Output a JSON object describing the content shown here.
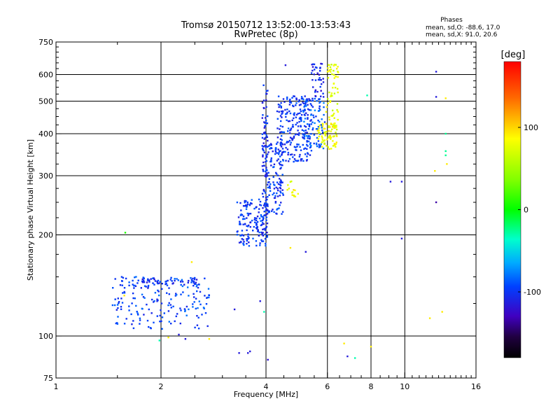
{
  "chart_data": {
    "type": "scatter",
    "title": "Tromsø 20150712 13:52:00-13:53:43",
    "subtitle": "RwPretec (8p)",
    "xlabel": "Frequency [MHz]",
    "ylabel": "Stationary phase Virtual Height [km]",
    "x_scale": "log",
    "y_scale": "log",
    "xlim": [
      1,
      16
    ],
    "ylim": [
      75,
      750
    ],
    "x_ticks": [
      1,
      2,
      4,
      6,
      8,
      10,
      16
    ],
    "x_tick_labels": [
      "1",
      "2",
      "4",
      "6",
      "8",
      "10",
      "16"
    ],
    "x_grid_lines": [
      2,
      4,
      6,
      8,
      10
    ],
    "y_ticks": [
      75,
      100,
      200,
      300,
      400,
      500,
      600,
      750
    ],
    "y_tick_labels": [
      "75",
      "100",
      "200",
      "300",
      "400",
      "500",
      "600",
      "750"
    ],
    "y_grid_lines": [
      100,
      200,
      300,
      400,
      500,
      600
    ],
    "grid": true,
    "phases_legend": {
      "title": "Phases",
      "line_o": "mean, sd,O: -88.6, 17.0",
      "line_x": "mean, sd,X:  91.0, 20.6"
    },
    "colorbar": {
      "label": "[deg]",
      "range": [
        -180,
        180
      ],
      "ticks": [
        100,
        0,
        -100
      ],
      "tick_labels": [
        "100",
        "0",
        "-100"
      ],
      "colormap": "rainbow"
    },
    "clusters": [
      {
        "f": [
          1.45,
          2.75
        ],
        "h": [
          105,
          150
        ],
        "phase": -95,
        "n": 190
      },
      {
        "f": [
          1.7,
          2.6
        ],
        "h": [
          142,
          148
        ],
        "phase": -105,
        "n": 45
      },
      {
        "f": [
          3.3,
          4.05
        ],
        "h": [
          185,
          255
        ],
        "phase": -100,
        "n": 150
      },
      {
        "f": [
          3.9,
          4.05
        ],
        "h": [
          200,
          560
        ],
        "phase": -105,
        "n": 90
      },
      {
        "f": [
          4.0,
          4.5
        ],
        "h": [
          230,
          380
        ],
        "phase": -100,
        "n": 120
      },
      {
        "f": [
          4.3,
          5.4
        ],
        "h": [
          330,
          520
        ],
        "phase": -100,
        "n": 230
      },
      {
        "f": [
          5.1,
          5.9
        ],
        "h": [
          360,
          510
        ],
        "phase": -90,
        "n": 90
      },
      {
        "f": [
          5.4,
          5.85
        ],
        "h": [
          500,
          650
        ],
        "phase": -110,
        "n": 40
      },
      {
        "f": [
          5.6,
          6.4
        ],
        "h": [
          360,
          430
        ],
        "phase": 95,
        "n": 80
      },
      {
        "f": [
          5.95,
          6.45
        ],
        "h": [
          420,
          650
        ],
        "phase": 90,
        "n": 60
      },
      {
        "f": [
          4.6,
          4.95
        ],
        "h": [
          260,
          290
        ],
        "phase": 98,
        "n": 14
      }
    ],
    "points": [
      {
        "f": 12.3,
        "h": 612,
        "phase": -115
      },
      {
        "f": 12.3,
        "h": 515,
        "phase": -115
      },
      {
        "f": 13.1,
        "h": 510,
        "phase": 105
      },
      {
        "f": 13.1,
        "h": 400,
        "phase": -25
      },
      {
        "f": 13.1,
        "h": 355,
        "phase": -25
      },
      {
        "f": 13.1,
        "h": 345,
        "phase": -25
      },
      {
        "f": 13.2,
        "h": 325,
        "phase": 105
      },
      {
        "f": 12.2,
        "h": 310,
        "phase": 105
      },
      {
        "f": 9.1,
        "h": 288,
        "phase": -115
      },
      {
        "f": 9.8,
        "h": 288,
        "phase": -115
      },
      {
        "f": 12.3,
        "h": 250,
        "phase": -135
      },
      {
        "f": 9.8,
        "h": 195,
        "phase": -115
      },
      {
        "f": 12.8,
        "h": 118,
        "phase": 105
      },
      {
        "f": 11.8,
        "h": 113,
        "phase": 105
      },
      {
        "f": 7.8,
        "h": 520,
        "phase": -30
      },
      {
        "f": 4.55,
        "h": 640,
        "phase": -115
      },
      {
        "f": 5.2,
        "h": 178,
        "phase": -115
      },
      {
        "f": 4.7,
        "h": 183,
        "phase": 105
      },
      {
        "f": 1.58,
        "h": 203,
        "phase": 10
      },
      {
        "f": 1.57,
        "h": 132,
        "phase": 105
      },
      {
        "f": 2.45,
        "h": 166,
        "phase": 105
      },
      {
        "f": 3.35,
        "h": 89,
        "phase": -115
      },
      {
        "f": 3.55,
        "h": 89,
        "phase": -115
      },
      {
        "f": 3.6,
        "h": 90,
        "phase": -115
      },
      {
        "f": 4.05,
        "h": 85,
        "phase": -120
      },
      {
        "f": 3.95,
        "h": 118,
        "phase": -30
      },
      {
        "f": 3.85,
        "h": 127,
        "phase": -115
      },
      {
        "f": 3.25,
        "h": 120,
        "phase": -115
      },
      {
        "f": 6.7,
        "h": 95,
        "phase": 105
      },
      {
        "f": 7.2,
        "h": 86,
        "phase": -30
      },
      {
        "f": 6.85,
        "h": 87,
        "phase": -115
      },
      {
        "f": 8.0,
        "h": 93,
        "phase": 105
      },
      {
        "f": 2.1,
        "h": 99,
        "phase": 105
      },
      {
        "f": 2.35,
        "h": 98,
        "phase": -115
      },
      {
        "f": 1.98,
        "h": 97,
        "phase": -30
      },
      {
        "f": 2.75,
        "h": 98,
        "phase": 105
      },
      {
        "f": 2.25,
        "h": 101,
        "phase": -115
      }
    ]
  }
}
